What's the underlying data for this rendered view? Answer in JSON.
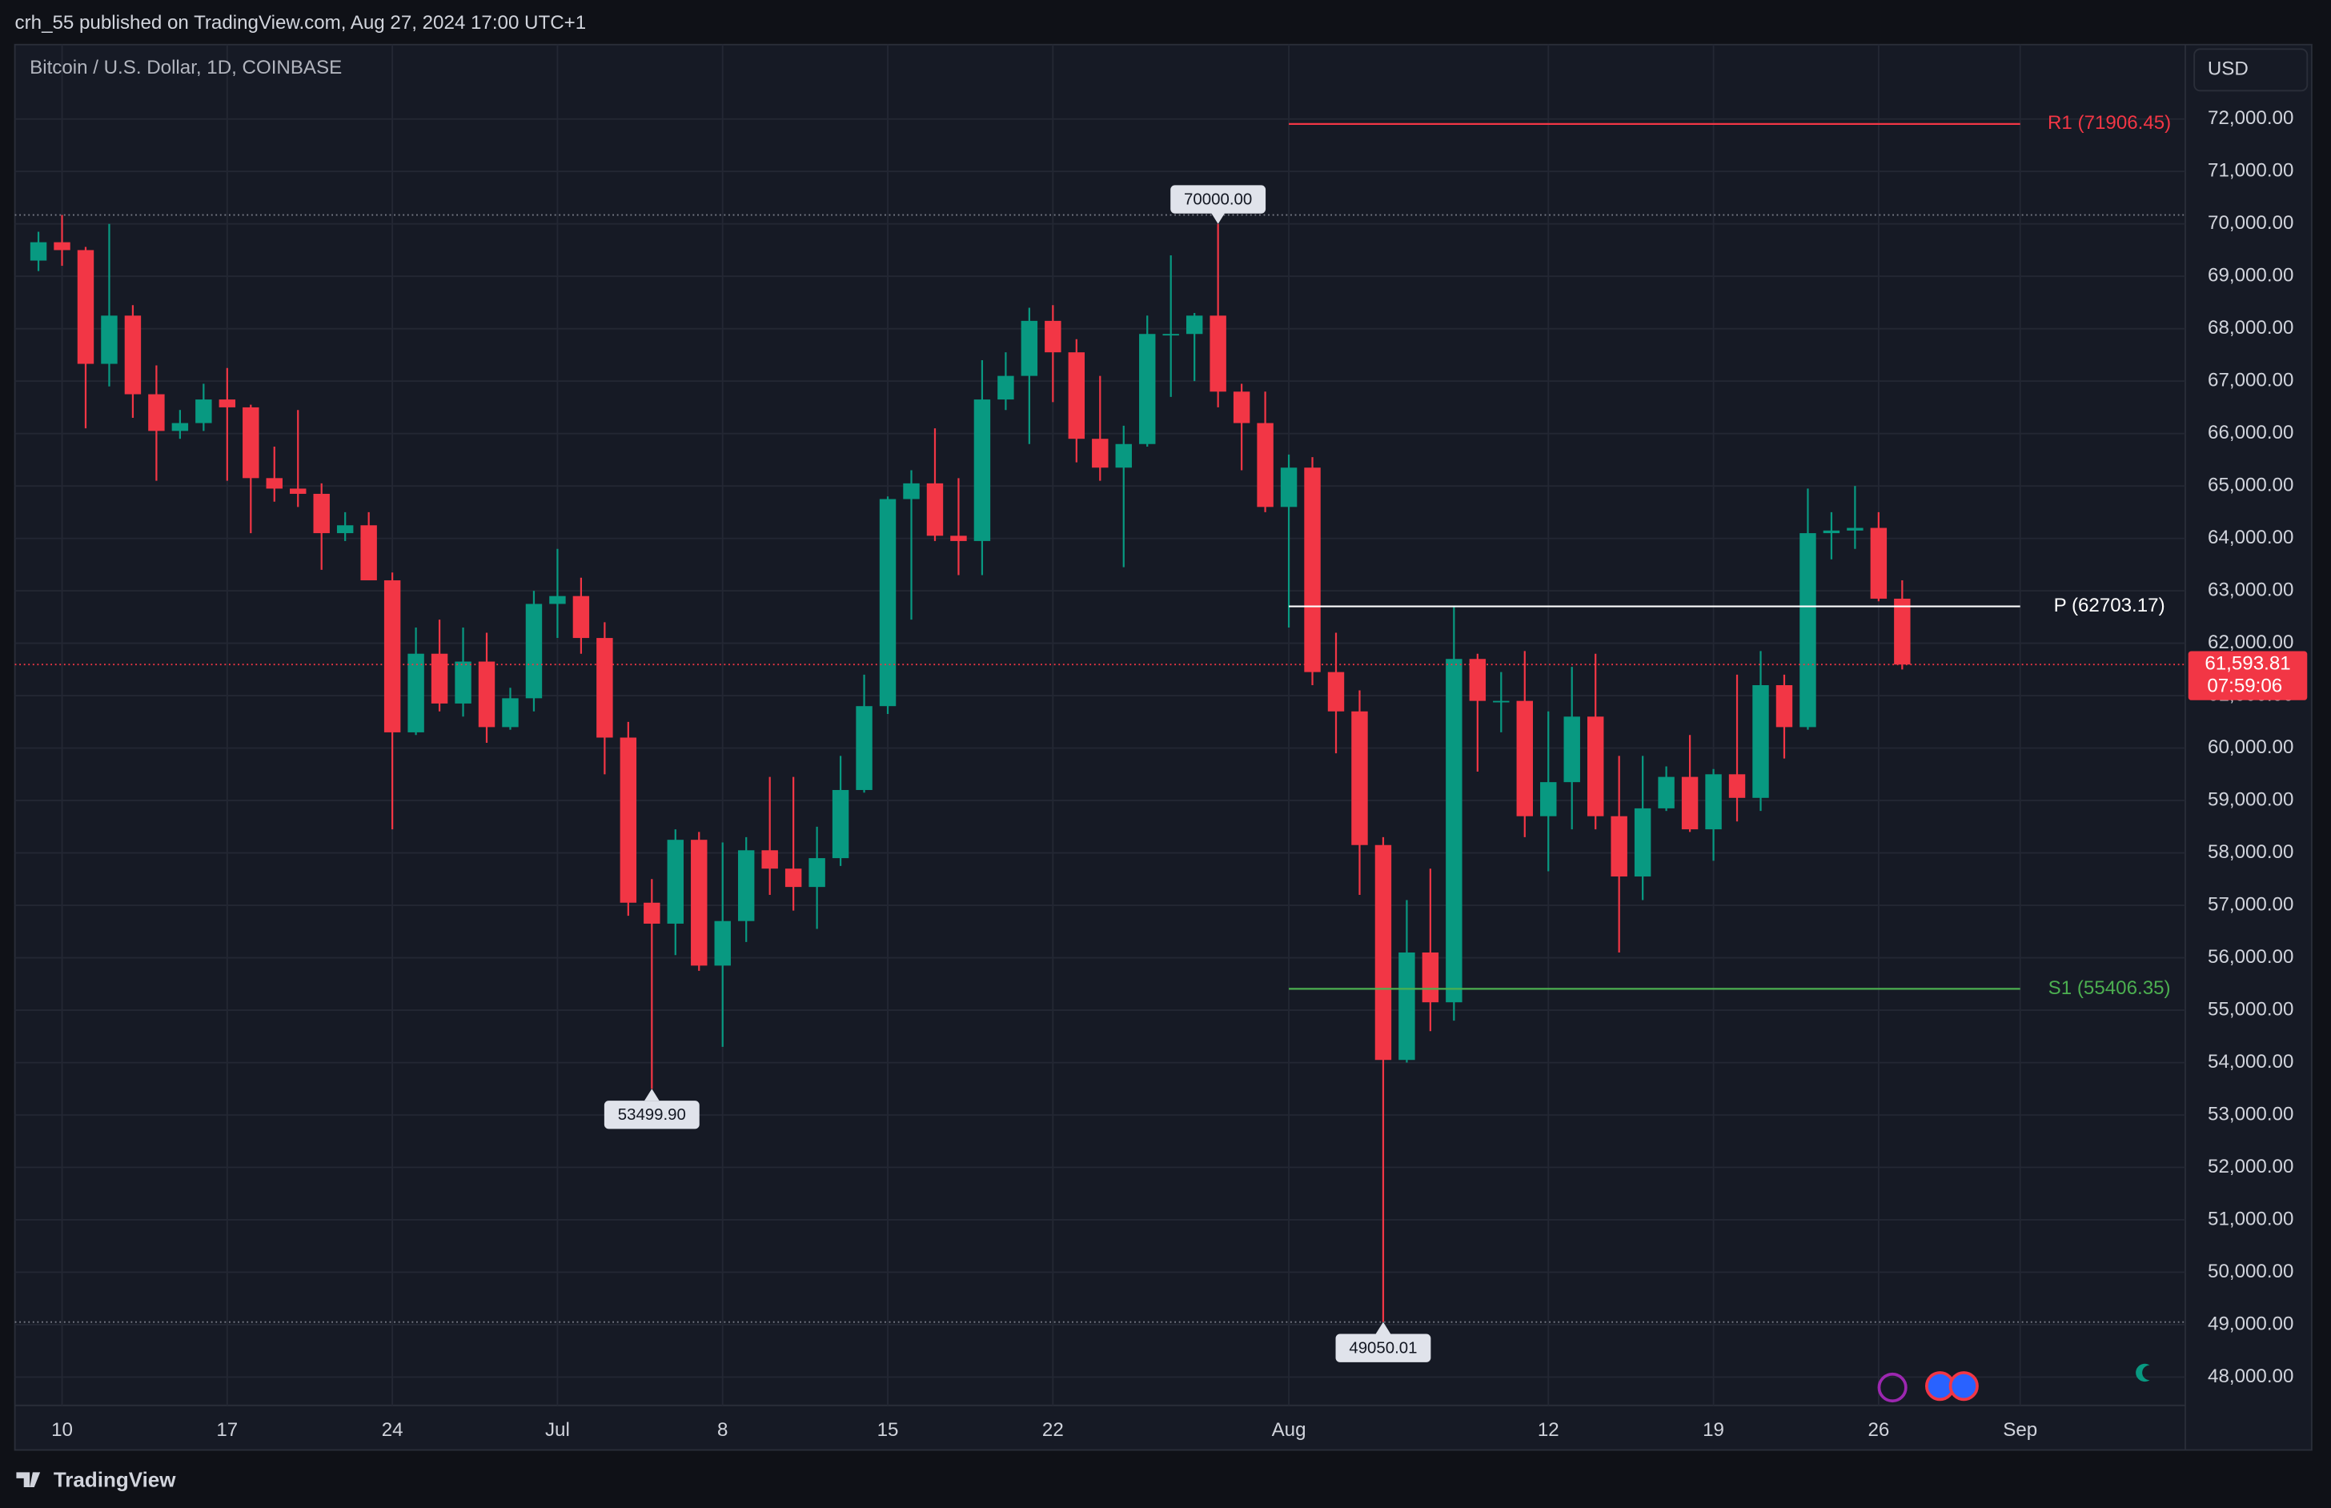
{
  "header": {
    "published": "crh_55 published on TradingView.com, Aug 27, 2024 17:00 UTC+1",
    "brand": "TradingView"
  },
  "chart_data": {
    "type": "candlestick",
    "title": "Bitcoin / U.S. Dollar, 1D, COINBASE",
    "currency": "USD",
    "up_color": "#089981",
    "down_color": "#f23645",
    "x": [
      "2024-06-09",
      "2024-06-10",
      "2024-06-11",
      "2024-06-12",
      "2024-06-13",
      "2024-06-14",
      "2024-06-15",
      "2024-06-16",
      "2024-06-17",
      "2024-06-18",
      "2024-06-19",
      "2024-06-20",
      "2024-06-21",
      "2024-06-22",
      "2024-06-23",
      "2024-06-24",
      "2024-06-25",
      "2024-06-26",
      "2024-06-27",
      "2024-06-28",
      "2024-06-29",
      "2024-06-30",
      "2024-07-01",
      "2024-07-02",
      "2024-07-03",
      "2024-07-04",
      "2024-07-05",
      "2024-07-06",
      "2024-07-07",
      "2024-07-08",
      "2024-07-09",
      "2024-07-10",
      "2024-07-11",
      "2024-07-12",
      "2024-07-13",
      "2024-07-14",
      "2024-07-15",
      "2024-07-16",
      "2024-07-17",
      "2024-07-18",
      "2024-07-19",
      "2024-07-20",
      "2024-07-21",
      "2024-07-22",
      "2024-07-23",
      "2024-07-24",
      "2024-07-25",
      "2024-07-26",
      "2024-07-27",
      "2024-07-28",
      "2024-07-29",
      "2024-07-30",
      "2024-07-31",
      "2024-08-01",
      "2024-08-02",
      "2024-08-03",
      "2024-08-04",
      "2024-08-05",
      "2024-08-06",
      "2024-08-07",
      "2024-08-08",
      "2024-08-09",
      "2024-08-10",
      "2024-08-11",
      "2024-08-12",
      "2024-08-13",
      "2024-08-14",
      "2024-08-15",
      "2024-08-16",
      "2024-08-17",
      "2024-08-18",
      "2024-08-19",
      "2024-08-20",
      "2024-08-21",
      "2024-08-22",
      "2024-08-23",
      "2024-08-24",
      "2024-08-25",
      "2024-08-26",
      "2024-08-27"
    ],
    "open": [
      69300,
      69650,
      69500,
      67330,
      68250,
      66750,
      66050,
      66200,
      66650,
      66500,
      65150,
      64950,
      64850,
      64100,
      64250,
      63200,
      60300,
      61800,
      60850,
      61650,
      60400,
      60950,
      62750,
      62900,
      62100,
      60200,
      57050,
      56650,
      58250,
      55850,
      56700,
      58050,
      57700,
      57350,
      57900,
      59200,
      60800,
      64750,
      65050,
      64050,
      63950,
      66650,
      67100,
      68150,
      67550,
      65900,
      65350,
      65800,
      67900,
      67900,
      68250,
      66800,
      66200,
      64600,
      65350,
      61450,
      60700,
      58150,
      54050,
      56100,
      55150,
      61700,
      60900,
      60900,
      58700,
      59350,
      60600,
      58700,
      57550,
      58850,
      59450,
      58450,
      59500,
      59050,
      61200,
      60400,
      64100,
      64150,
      64200,
      62850
    ],
    "high": [
      69850,
      70170,
      69560,
      70000,
      68450,
      67300,
      66450,
      66950,
      67250,
      66550,
      65750,
      66450,
      65050,
      64500,
      64500,
      63350,
      62300,
      62450,
      62300,
      62200,
      61150,
      63000,
      63800,
      63250,
      62400,
      60500,
      57500,
      58450,
      58400,
      58200,
      58300,
      59450,
      59450,
      58500,
      59850,
      61400,
      64800,
      65300,
      66100,
      65150,
      67400,
      67550,
      68400,
      68450,
      67800,
      67100,
      66150,
      68250,
      69400,
      68300,
      70000,
      66950,
      66800,
      65600,
      65550,
      62200,
      61100,
      58300,
      57100,
      57700,
      62700,
      61800,
      61450,
      61850,
      60700,
      61550,
      61800,
      59850,
      59850,
      59650,
      60250,
      59600,
      61400,
      61850,
      61400,
      64950,
      64500,
      65000,
      64500,
      63200
    ],
    "low": [
      69100,
      69200,
      66100,
      66900,
      66300,
      65100,
      65900,
      66050,
      65100,
      64100,
      64700,
      64600,
      63400,
      63950,
      63200,
      58450,
      60250,
      60700,
      60600,
      60100,
      60350,
      60700,
      62100,
      61800,
      59500,
      56800,
      53499.9,
      56050,
      55750,
      54300,
      56300,
      57200,
      56900,
      56550,
      57750,
      59150,
      60650,
      62450,
      63950,
      63300,
      63300,
      66450,
      65800,
      66600,
      65450,
      65100,
      63450,
      65750,
      66700,
      67000,
      66500,
      65300,
      64500,
      62300,
      61200,
      59900,
      57200,
      49050.01,
      54000,
      54600,
      54800,
      59550,
      60300,
      58300,
      57650,
      58450,
      58450,
      56100,
      57100,
      58800,
      58400,
      57850,
      58600,
      58800,
      59800,
      60350,
      63600,
      63800,
      62800,
      61500
    ],
    "close": [
      69650,
      69500,
      67330,
      68250,
      66750,
      66050,
      66200,
      66650,
      66500,
      65150,
      64950,
      64850,
      64100,
      64250,
      63200,
      60300,
      61800,
      60850,
      61650,
      60400,
      60950,
      62750,
      62900,
      62100,
      60200,
      57050,
      56650,
      58250,
      55850,
      56700,
      58050,
      57700,
      57350,
      57900,
      59200,
      60800,
      64750,
      65050,
      64050,
      63950,
      66650,
      67100,
      68150,
      67550,
      65900,
      65350,
      65800,
      67900,
      67900,
      68250,
      66800,
      66200,
      64600,
      65350,
      61450,
      60700,
      58150,
      54050,
      56100,
      55150,
      61700,
      60900,
      60900,
      58700,
      59350,
      60600,
      58700,
      57550,
      58850,
      59450,
      58450,
      59500,
      59050,
      61200,
      60400,
      64100,
      64150,
      64200,
      62850,
      61593.81
    ],
    "xlim": [
      "2024-06-08",
      "2024-09-08"
    ],
    "xticks": [
      {
        "value": "2024-06-10",
        "label": "10"
      },
      {
        "value": "2024-06-17",
        "label": "17"
      },
      {
        "value": "2024-06-24",
        "label": "24"
      },
      {
        "value": "2024-07-01",
        "label": "Jul"
      },
      {
        "value": "2024-07-08",
        "label": "8"
      },
      {
        "value": "2024-07-15",
        "label": "15"
      },
      {
        "value": "2024-07-22",
        "label": "22"
      },
      {
        "value": "2024-08-01",
        "label": "Aug"
      },
      {
        "value": "2024-08-12",
        "label": "12"
      },
      {
        "value": "2024-08-19",
        "label": "19"
      },
      {
        "value": "2024-08-26",
        "label": "26"
      },
      {
        "value": "2024-09-01",
        "label": "Sep"
      }
    ],
    "ylim": [
      47460,
      73420
    ],
    "yticks": [
      {
        "value": 48000,
        "label": "48,000.00"
      },
      {
        "value": 49000,
        "label": "49,000.00"
      },
      {
        "value": 50000,
        "label": "50,000.00"
      },
      {
        "value": 51000,
        "label": "51,000.00"
      },
      {
        "value": 52000,
        "label": "52,000.00"
      },
      {
        "value": 53000,
        "label": "53,000.00"
      },
      {
        "value": 54000,
        "label": "54,000.00"
      },
      {
        "value": 55000,
        "label": "55,000.00"
      },
      {
        "value": 56000,
        "label": "56,000.00"
      },
      {
        "value": 57000,
        "label": "57,000.00"
      },
      {
        "value": 58000,
        "label": "58,000.00"
      },
      {
        "value": 59000,
        "label": "59,000.00"
      },
      {
        "value": 60000,
        "label": "60,000.00"
      },
      {
        "value": 61000,
        "label": "61,000.00"
      },
      {
        "value": 62000,
        "label": "62,000.00"
      },
      {
        "value": 63000,
        "label": "63,000.00"
      },
      {
        "value": 64000,
        "label": "64,000.00"
      },
      {
        "value": 65000,
        "label": "65,000.00"
      },
      {
        "value": 66000,
        "label": "66,000.00"
      },
      {
        "value": 67000,
        "label": "67,000.00"
      },
      {
        "value": 68000,
        "label": "68,000.00"
      },
      {
        "value": 69000,
        "label": "69,000.00"
      },
      {
        "value": 70000,
        "label": "70,000.00"
      },
      {
        "value": 71000,
        "label": "71,000.00"
      },
      {
        "value": 72000,
        "label": "72,000.00"
      }
    ],
    "grid": true,
    "levels": [
      {
        "label": "R1 (71906.45)",
        "value": 71906.45,
        "color": "#f23645",
        "from": "2024-08-01",
        "to": "2024-09-01"
      },
      {
        "label": "P (62703.17)",
        "value": 62703.17,
        "color": "#ffffff",
        "from": "2024-08-01",
        "to": "2024-09-01"
      },
      {
        "label": "S1 (55406.35)",
        "value": 55406.35,
        "color": "#4caf50",
        "from": "2024-08-01",
        "to": "2024-09-01"
      }
    ],
    "annotations": [
      {
        "x": "2024-07-29",
        "value": 70000,
        "label": "70000.00",
        "position": "above"
      },
      {
        "x": "2024-07-05",
        "value": 53499.9,
        "label": "53499.90",
        "position": "below"
      },
      {
        "x": "2024-08-05",
        "value": 49050.01,
        "label": "49050.01",
        "position": "below"
      }
    ],
    "last_price": {
      "value": 61593.81,
      "label": "61,593.81",
      "countdown": "07:59:06"
    }
  }
}
